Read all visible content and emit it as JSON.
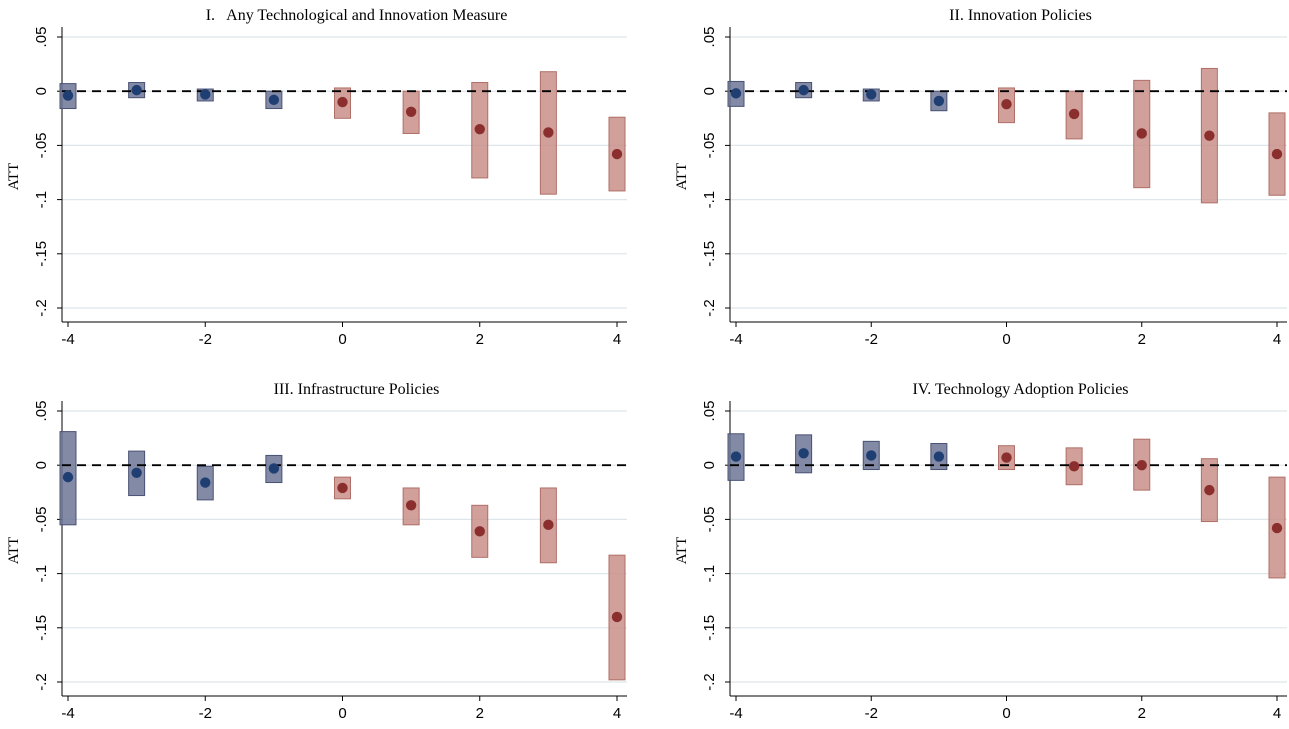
{
  "colors": {
    "pre_fill": "#6d7596",
    "pre_edge": "#4a5275",
    "pre_point": "#1f3f73",
    "post_fill": "#c98f88",
    "post_edge": "#b06f67",
    "post_point": "#8b2e2e",
    "grid": "#dde6ea",
    "axis": "#000000"
  },
  "chart_data": [
    {
      "type": "scatter",
      "title": "I.   Any Technological and Innovation Measure",
      "ylabel": "ATT",
      "xlabel": "",
      "xlim": [
        -4,
        4
      ],
      "ylim": [
        -0.2,
        0.05
      ],
      "grid": true,
      "reference_line": 0,
      "x_ticks": [
        -4,
        -2,
        0,
        2,
        4
      ],
      "x_tick_labels": [
        "-4",
        "-2",
        "0",
        "2",
        "4"
      ],
      "y_ticks": [
        0.05,
        0,
        -0.05,
        -0.1,
        -0.15,
        -0.2
      ],
      "y_tick_labels": [
        ".05",
        "0",
        "-.05",
        "-.1",
        "-.15",
        "-.2"
      ],
      "points": [
        {
          "x": -4,
          "y": -0.004,
          "lo": -0.016,
          "hi": 0.007,
          "period": "pre"
        },
        {
          "x": -3,
          "y": 0.001,
          "lo": -0.006,
          "hi": 0.008,
          "period": "pre"
        },
        {
          "x": -2,
          "y": -0.003,
          "lo": -0.009,
          "hi": 0.002,
          "period": "pre"
        },
        {
          "x": -1,
          "y": -0.008,
          "lo": -0.016,
          "hi": 0.0,
          "period": "pre"
        },
        {
          "x": 0,
          "y": -0.01,
          "lo": -0.025,
          "hi": 0.003,
          "period": "post"
        },
        {
          "x": 1,
          "y": -0.019,
          "lo": -0.039,
          "hi": 0.0,
          "period": "post"
        },
        {
          "x": 2,
          "y": -0.035,
          "lo": -0.08,
          "hi": 0.008,
          "period": "post"
        },
        {
          "x": 3,
          "y": -0.038,
          "lo": -0.095,
          "hi": 0.018,
          "period": "post"
        },
        {
          "x": 4,
          "y": -0.058,
          "lo": -0.092,
          "hi": -0.024,
          "period": "post"
        }
      ]
    },
    {
      "type": "scatter",
      "title": "II. Innovation Policies",
      "ylabel": "ATT",
      "xlabel": "",
      "xlim": [
        -4,
        4
      ],
      "ylim": [
        -0.2,
        0.05
      ],
      "grid": true,
      "reference_line": 0,
      "x_ticks": [
        -4,
        -2,
        0,
        2,
        4
      ],
      "x_tick_labels": [
        "-4",
        "-2",
        "0",
        "2",
        "4"
      ],
      "y_ticks": [
        0.05,
        0,
        -0.05,
        -0.1,
        -0.15,
        -0.2
      ],
      "y_tick_labels": [
        ".05",
        "0",
        "-.05",
        "-.1",
        "-.15",
        "-.2"
      ],
      "points": [
        {
          "x": -4,
          "y": -0.002,
          "lo": -0.014,
          "hi": 0.009,
          "period": "pre"
        },
        {
          "x": -3,
          "y": 0.001,
          "lo": -0.006,
          "hi": 0.008,
          "period": "pre"
        },
        {
          "x": -2,
          "y": -0.003,
          "lo": -0.009,
          "hi": 0.002,
          "period": "pre"
        },
        {
          "x": -1,
          "y": -0.009,
          "lo": -0.018,
          "hi": 0.0,
          "period": "pre"
        },
        {
          "x": 0,
          "y": -0.012,
          "lo": -0.029,
          "hi": 0.003,
          "period": "post"
        },
        {
          "x": 1,
          "y": -0.021,
          "lo": -0.044,
          "hi": 0.0,
          "period": "post"
        },
        {
          "x": 2,
          "y": -0.039,
          "lo": -0.089,
          "hi": 0.01,
          "period": "post"
        },
        {
          "x": 3,
          "y": -0.041,
          "lo": -0.103,
          "hi": 0.021,
          "period": "post"
        },
        {
          "x": 4,
          "y": -0.058,
          "lo": -0.096,
          "hi": -0.02,
          "period": "post"
        }
      ]
    },
    {
      "type": "scatter",
      "title": "III. Infrastructure Policies",
      "ylabel": "ATT",
      "xlabel": "",
      "xlim": [
        -4,
        4
      ],
      "ylim": [
        -0.2,
        0.05
      ],
      "grid": true,
      "reference_line": 0,
      "x_ticks": [
        -4,
        -2,
        0,
        2,
        4
      ],
      "x_tick_labels": [
        "-4",
        "-2",
        "0",
        "2",
        "4"
      ],
      "y_ticks": [
        0.05,
        0,
        -0.05,
        -0.1,
        -0.15,
        -0.2
      ],
      "y_tick_labels": [
        ".05",
        "0",
        "-.05",
        "-.1",
        "-.15",
        "-.2"
      ],
      "points": [
        {
          "x": -4,
          "y": -0.011,
          "lo": -0.055,
          "hi": 0.031,
          "period": "pre"
        },
        {
          "x": -3,
          "y": -0.007,
          "lo": -0.028,
          "hi": 0.013,
          "period": "pre"
        },
        {
          "x": -2,
          "y": -0.016,
          "lo": -0.032,
          "hi": -0.001,
          "period": "pre"
        },
        {
          "x": -1,
          "y": -0.003,
          "lo": -0.016,
          "hi": 0.009,
          "period": "pre"
        },
        {
          "x": 0,
          "y": -0.021,
          "lo": -0.031,
          "hi": -0.011,
          "period": "post"
        },
        {
          "x": 1,
          "y": -0.037,
          "lo": -0.055,
          "hi": -0.021,
          "period": "post"
        },
        {
          "x": 2,
          "y": -0.061,
          "lo": -0.085,
          "hi": -0.037,
          "period": "post"
        },
        {
          "x": 3,
          "y": -0.055,
          "lo": -0.09,
          "hi": -0.021,
          "period": "post"
        },
        {
          "x": 4,
          "y": -0.14,
          "lo": -0.198,
          "hi": -0.083,
          "period": "post"
        }
      ]
    },
    {
      "type": "scatter",
      "title": "IV. Technology Adoption Policies",
      "ylabel": "ATT",
      "xlabel": "",
      "xlim": [
        -4,
        4
      ],
      "ylim": [
        -0.2,
        0.05
      ],
      "grid": true,
      "reference_line": 0,
      "x_ticks": [
        -4,
        -2,
        0,
        2,
        4
      ],
      "x_tick_labels": [
        "-4",
        "-2",
        "0",
        "2",
        "4"
      ],
      "y_ticks": [
        0.05,
        0,
        -0.05,
        -0.1,
        -0.15,
        -0.2
      ],
      "y_tick_labels": [
        ".05",
        "0",
        "-.05",
        "-.1",
        "-.15",
        "-.2"
      ],
      "points": [
        {
          "x": -4,
          "y": 0.008,
          "lo": -0.014,
          "hi": 0.029,
          "period": "pre"
        },
        {
          "x": -3,
          "y": 0.011,
          "lo": -0.007,
          "hi": 0.028,
          "period": "pre"
        },
        {
          "x": -2,
          "y": 0.009,
          "lo": -0.004,
          "hi": 0.022,
          "period": "pre"
        },
        {
          "x": -1,
          "y": 0.008,
          "lo": -0.004,
          "hi": 0.02,
          "period": "pre"
        },
        {
          "x": 0,
          "y": 0.007,
          "lo": -0.004,
          "hi": 0.018,
          "period": "post"
        },
        {
          "x": 1,
          "y": -0.001,
          "lo": -0.018,
          "hi": 0.016,
          "period": "post"
        },
        {
          "x": 2,
          "y": 0.0,
          "lo": -0.023,
          "hi": 0.024,
          "period": "post"
        },
        {
          "x": 3,
          "y": -0.023,
          "lo": -0.052,
          "hi": 0.006,
          "period": "post"
        },
        {
          "x": 4,
          "y": -0.058,
          "lo": -0.104,
          "hi": -0.011,
          "period": "post"
        }
      ]
    }
  ]
}
